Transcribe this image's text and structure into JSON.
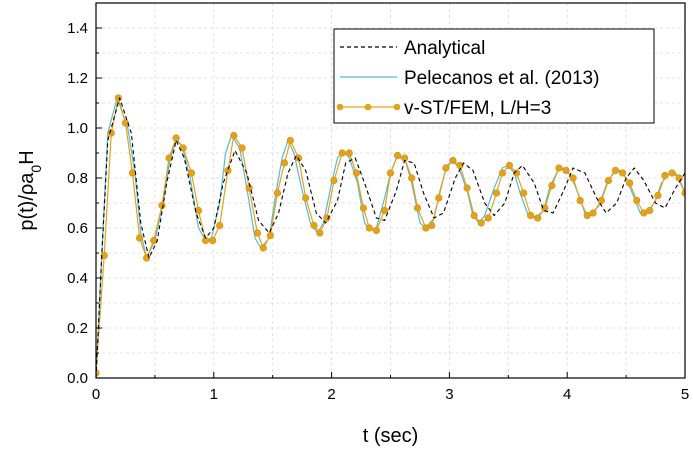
{
  "chart_data": {
    "type": "line",
    "title": "",
    "xlabel": "t (sec)",
    "ylabel": {
      "main": "p(t)/ρa",
      "sub": "0",
      "tail": "H"
    },
    "xlim": [
      0,
      5
    ],
    "ylim": [
      0,
      1.5
    ],
    "xticks": [
      0,
      1,
      2,
      3,
      4,
      5
    ],
    "yticks": [
      0.0,
      0.2,
      0.4,
      0.6,
      0.8,
      1.0,
      1.2,
      1.4
    ],
    "xtick_labels": [
      "0",
      "1",
      "2",
      "3",
      "4",
      "5"
    ],
    "ytick_labels": [
      "0.0",
      "0.2",
      "0.4",
      "0.6",
      "0.8",
      "1.0",
      "1.2",
      "1.4"
    ],
    "grid": true,
    "legend_position": "top-right",
    "colors": {
      "analytical": "#000000",
      "pelecanos": "#5bb8d6",
      "vst": "#e3a21a"
    },
    "series": [
      {
        "name": "Analytical",
        "style": "dashed",
        "points": [
          [
            0,
            0
          ],
          [
            0.05,
            0.5
          ],
          [
            0.1,
            0.95
          ],
          [
            0.2,
            1.12
          ],
          [
            0.3,
            0.98
          ],
          [
            0.38,
            0.62
          ],
          [
            0.45,
            0.48
          ],
          [
            0.52,
            0.55
          ],
          [
            0.6,
            0.78
          ],
          [
            0.68,
            0.95
          ],
          [
            0.75,
            0.88
          ],
          [
            0.85,
            0.66
          ],
          [
            0.93,
            0.56
          ],
          [
            1.0,
            0.6
          ],
          [
            1.08,
            0.78
          ],
          [
            1.18,
            0.91
          ],
          [
            1.28,
            0.82
          ],
          [
            1.38,
            0.63
          ],
          [
            1.47,
            0.58
          ],
          [
            1.55,
            0.66
          ],
          [
            1.63,
            0.82
          ],
          [
            1.7,
            0.89
          ],
          [
            1.78,
            0.83
          ],
          [
            1.87,
            0.66
          ],
          [
            1.95,
            0.62
          ],
          [
            2.05,
            0.71
          ],
          [
            2.12,
            0.86
          ],
          [
            2.2,
            0.88
          ],
          [
            2.28,
            0.78
          ],
          [
            2.38,
            0.64
          ],
          [
            2.45,
            0.63
          ],
          [
            2.55,
            0.75
          ],
          [
            2.62,
            0.87
          ],
          [
            2.7,
            0.86
          ],
          [
            2.78,
            0.74
          ],
          [
            2.87,
            0.64
          ],
          [
            2.95,
            0.66
          ],
          [
            3.05,
            0.8
          ],
          [
            3.12,
            0.86
          ],
          [
            3.2,
            0.83
          ],
          [
            3.3,
            0.7
          ],
          [
            3.38,
            0.65
          ],
          [
            3.47,
            0.7
          ],
          [
            3.55,
            0.82
          ],
          [
            3.62,
            0.85
          ],
          [
            3.72,
            0.78
          ],
          [
            3.8,
            0.67
          ],
          [
            3.88,
            0.66
          ],
          [
            3.97,
            0.75
          ],
          [
            4.05,
            0.84
          ],
          [
            4.15,
            0.82
          ],
          [
            4.25,
            0.72
          ],
          [
            4.33,
            0.66
          ],
          [
            4.42,
            0.7
          ],
          [
            4.5,
            0.8
          ],
          [
            4.57,
            0.84
          ],
          [
            4.65,
            0.79
          ],
          [
            4.75,
            0.7
          ],
          [
            4.83,
            0.68
          ],
          [
            4.92,
            0.76
          ],
          [
            5.0,
            0.82
          ]
        ]
      },
      {
        "name": "Pelecanos et al. (2013)",
        "style": "solid",
        "points": [
          [
            0,
            0
          ],
          [
            0.05,
            0.5
          ],
          [
            0.1,
            0.98
          ],
          [
            0.18,
            1.12
          ],
          [
            0.27,
            1.0
          ],
          [
            0.33,
            0.82
          ],
          [
            0.38,
            0.58
          ],
          [
            0.43,
            0.48
          ],
          [
            0.5,
            0.55
          ],
          [
            0.57,
            0.7
          ],
          [
            0.63,
            0.88
          ],
          [
            0.68,
            0.95
          ],
          [
            0.73,
            0.93
          ],
          [
            0.8,
            0.8
          ],
          [
            0.87,
            0.6
          ],
          [
            0.93,
            0.55
          ],
          [
            0.98,
            0.56
          ],
          [
            1.05,
            0.7
          ],
          [
            1.1,
            0.9
          ],
          [
            1.15,
            0.97
          ],
          [
            1.22,
            0.92
          ],
          [
            1.28,
            0.76
          ],
          [
            1.35,
            0.56
          ],
          [
            1.4,
            0.52
          ],
          [
            1.47,
            0.56
          ],
          [
            1.52,
            0.72
          ],
          [
            1.58,
            0.88
          ],
          [
            1.63,
            0.95
          ],
          [
            1.68,
            0.9
          ],
          [
            1.75,
            0.75
          ],
          [
            1.82,
            0.62
          ],
          [
            1.88,
            0.58
          ],
          [
            1.93,
            0.62
          ],
          [
            2.0,
            0.78
          ],
          [
            2.05,
            0.88
          ],
          [
            2.1,
            0.91
          ],
          [
            2.15,
            0.88
          ],
          [
            2.22,
            0.78
          ],
          [
            2.28,
            0.62
          ],
          [
            2.33,
            0.59
          ],
          [
            2.38,
            0.6
          ],
          [
            2.45,
            0.72
          ],
          [
            2.5,
            0.82
          ],
          [
            2.55,
            0.88
          ],
          [
            2.62,
            0.88
          ],
          [
            2.68,
            0.78
          ],
          [
            2.75,
            0.62
          ],
          [
            2.8,
            0.6
          ],
          [
            2.87,
            0.64
          ],
          [
            2.92,
            0.75
          ],
          [
            2.98,
            0.85
          ],
          [
            3.03,
            0.87
          ],
          [
            3.08,
            0.84
          ],
          [
            3.15,
            0.75
          ],
          [
            3.2,
            0.65
          ],
          [
            3.25,
            0.62
          ],
          [
            3.3,
            0.65
          ],
          [
            3.38,
            0.76
          ],
          [
            3.45,
            0.84
          ],
          [
            3.5,
            0.85
          ],
          [
            3.55,
            0.82
          ],
          [
            3.6,
            0.74
          ],
          [
            3.67,
            0.65
          ],
          [
            3.73,
            0.64
          ],
          [
            3.8,
            0.67
          ],
          [
            3.85,
            0.76
          ],
          [
            3.92,
            0.83
          ],
          [
            3.97,
            0.84
          ],
          [
            4.03,
            0.81
          ],
          [
            4.1,
            0.73
          ],
          [
            4.15,
            0.66
          ],
          [
            4.2,
            0.65
          ],
          [
            4.27,
            0.69
          ],
          [
            4.33,
            0.77
          ],
          [
            4.4,
            0.83
          ],
          [
            4.45,
            0.83
          ],
          [
            4.5,
            0.8
          ],
          [
            4.57,
            0.72
          ],
          [
            4.62,
            0.66
          ],
          [
            4.68,
            0.66
          ],
          [
            4.75,
            0.71
          ],
          [
            4.8,
            0.78
          ],
          [
            4.87,
            0.82
          ],
          [
            4.92,
            0.82
          ],
          [
            5.0,
            0.74
          ]
        ]
      },
      {
        "name": "v-ST/FEM, L/H=3",
        "style": "solid-marker",
        "points": [
          [
            0,
            0.02
          ],
          [
            0.07,
            0.49
          ],
          [
            0.13,
            0.98
          ],
          [
            0.19,
            1.12
          ],
          [
            0.25,
            1.02
          ],
          [
            0.31,
            0.82
          ],
          [
            0.37,
            0.56
          ],
          [
            0.43,
            0.48
          ],
          [
            0.49,
            0.55
          ],
          [
            0.56,
            0.69
          ],
          [
            0.62,
            0.88
          ],
          [
            0.68,
            0.96
          ],
          [
            0.74,
            0.92
          ],
          [
            0.81,
            0.82
          ],
          [
            0.87,
            0.67
          ],
          [
            0.93,
            0.55
          ],
          [
            0.99,
            0.55
          ],
          [
            1.05,
            0.61
          ],
          [
            1.12,
            0.83
          ],
          [
            1.17,
            0.97
          ],
          [
            1.24,
            0.92
          ],
          [
            1.3,
            0.76
          ],
          [
            1.37,
            0.58
          ],
          [
            1.42,
            0.52
          ],
          [
            1.48,
            0.57
          ],
          [
            1.54,
            0.74
          ],
          [
            1.6,
            0.86
          ],
          [
            1.65,
            0.95
          ],
          [
            1.72,
            0.88
          ],
          [
            1.78,
            0.72
          ],
          [
            1.85,
            0.61
          ],
          [
            1.9,
            0.58
          ],
          [
            1.96,
            0.64
          ],
          [
            2.02,
            0.79
          ],
          [
            2.09,
            0.9
          ],
          [
            2.15,
            0.9
          ],
          [
            2.21,
            0.82
          ],
          [
            2.27,
            0.68
          ],
          [
            2.32,
            0.6
          ],
          [
            2.38,
            0.59
          ],
          [
            2.45,
            0.67
          ],
          [
            2.5,
            0.82
          ],
          [
            2.56,
            0.89
          ],
          [
            2.62,
            0.88
          ],
          [
            2.68,
            0.8
          ],
          [
            2.73,
            0.68
          ],
          [
            2.8,
            0.6
          ],
          [
            2.85,
            0.61
          ],
          [
            2.91,
            0.72
          ],
          [
            2.97,
            0.84
          ],
          [
            3.03,
            0.87
          ],
          [
            3.09,
            0.85
          ],
          [
            3.15,
            0.76
          ],
          [
            3.21,
            0.65
          ],
          [
            3.27,
            0.62
          ],
          [
            3.33,
            0.64
          ],
          [
            3.4,
            0.74
          ],
          [
            3.45,
            0.82
          ],
          [
            3.51,
            0.85
          ],
          [
            3.57,
            0.82
          ],
          [
            3.63,
            0.74
          ],
          [
            3.69,
            0.65
          ],
          [
            3.75,
            0.64
          ],
          [
            3.81,
            0.68
          ],
          [
            3.87,
            0.77
          ],
          [
            3.93,
            0.84
          ],
          [
            3.99,
            0.83
          ],
          [
            4.05,
            0.8
          ],
          [
            4.11,
            0.71
          ],
          [
            4.17,
            0.65
          ],
          [
            4.22,
            0.66
          ],
          [
            4.29,
            0.71
          ],
          [
            4.35,
            0.79
          ],
          [
            4.41,
            0.83
          ],
          [
            4.47,
            0.82
          ],
          [
            4.53,
            0.78
          ],
          [
            4.59,
            0.71
          ],
          [
            4.65,
            0.66
          ],
          [
            4.7,
            0.67
          ],
          [
            4.77,
            0.73
          ],
          [
            4.83,
            0.81
          ],
          [
            4.89,
            0.82
          ],
          [
            4.95,
            0.8
          ],
          [
            5.0,
            0.74
          ]
        ]
      }
    ]
  }
}
